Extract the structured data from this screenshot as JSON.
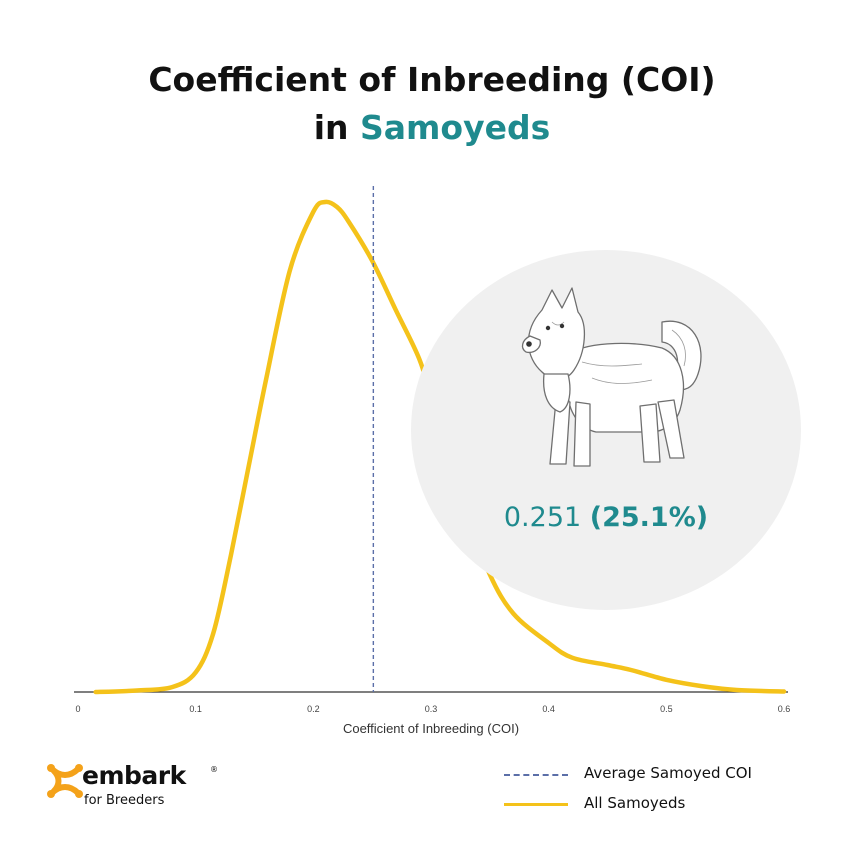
{
  "title": {
    "line1": "Coefficient of Inbreeding (COI)",
    "line2_prefix": "in ",
    "line2_accent": "Samoyeds"
  },
  "callout": {
    "value": "0.251",
    "percent": "(25.1%)",
    "image": "samoyed-dog-sketch"
  },
  "brand": {
    "name": "embark",
    "registered": "®",
    "tagline": "for Breeders",
    "logo_icon": "embark-logo-icon"
  },
  "colors": {
    "curve": "#f4c21a",
    "mean_line": "#5b6fa8",
    "accent": "#1f8a8e",
    "callout_bg": "#f0f0f0"
  },
  "chart_data": {
    "type": "line",
    "title": "Coefficient of Inbreeding (COI) in Samoyeds",
    "xlabel": "Coefficient of Inbreeding (COI)",
    "ylabel": "",
    "xlim": [
      0,
      0.6
    ],
    "x_ticks": [
      "0",
      "0.1",
      "0.2",
      "0.3",
      "0.4",
      "0.5",
      "0.6"
    ],
    "grid": false,
    "legend_position": "bottom-right",
    "series": [
      {
        "name": "All Samoyeds",
        "style": "solid",
        "x": [
          0.015,
          0.05,
          0.08,
          0.1,
          0.115,
          0.13,
          0.145,
          0.16,
          0.18,
          0.2,
          0.21,
          0.22,
          0.23,
          0.25,
          0.27,
          0.29,
          0.3,
          0.31,
          0.33,
          0.35,
          0.37,
          0.4,
          0.42,
          0.45,
          0.47,
          0.5,
          0.53,
          0.56,
          0.6
        ],
        "y": [
          0.0,
          0.003,
          0.01,
          0.04,
          0.12,
          0.28,
          0.46,
          0.64,
          0.86,
          0.98,
          1.0,
          0.99,
          0.96,
          0.88,
          0.78,
          0.68,
          0.6,
          0.5,
          0.37,
          0.24,
          0.16,
          0.1,
          0.07,
          0.055,
          0.045,
          0.025,
          0.012,
          0.004,
          0.001
        ]
      }
    ],
    "reference_lines": [
      {
        "name": "Average Samoyed COI",
        "x": 0.251,
        "style": "dashed"
      }
    ]
  },
  "legend": [
    {
      "label": "Average Samoyed COI",
      "style": "dashed"
    },
    {
      "label": "All Samoyeds",
      "style": "solid"
    }
  ]
}
